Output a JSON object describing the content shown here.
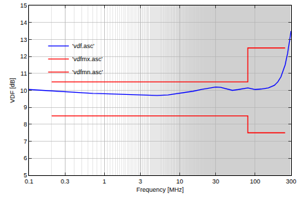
{
  "chart_data": {
    "type": "line",
    "x_label": "Frequency [MHz]",
    "y_label": "VDF [dB]",
    "log": "x",
    "grid": true,
    "legend": "upper left",
    "xlim": [
      0.1,
      300
    ],
    "ylim": [
      5,
      15
    ],
    "xticks": [
      0.1,
      0.3,
      1,
      3,
      10,
      30,
      100,
      300
    ],
    "yticks": [
      5,
      6,
      7,
      8,
      9,
      10,
      11,
      12,
      13,
      14,
      15
    ],
    "series": [
      {
        "name": "'vdf.asc'",
        "color": "#0000ff",
        "line_style": "solid",
        "x": [
          0.1,
          0.15,
          0.2,
          0.3,
          0.5,
          0.7,
          1,
          1.5,
          2,
          3,
          5,
          7,
          10,
          15,
          20,
          25,
          30,
          35,
          40,
          45,
          50,
          60,
          70,
          80,
          90,
          100,
          120,
          150,
          180,
          200,
          220,
          250,
          270,
          285,
          300
        ],
        "values": [
          10.05,
          10.0,
          9.95,
          9.9,
          9.85,
          9.82,
          9.8,
          9.77,
          9.75,
          9.72,
          9.7,
          9.73,
          9.82,
          9.95,
          10.07,
          10.15,
          10.2,
          10.18,
          10.12,
          10.05,
          10.0,
          10.05,
          10.12,
          10.15,
          10.1,
          10.05,
          10.08,
          10.15,
          10.3,
          10.5,
          10.8,
          11.5,
          12.2,
          12.8,
          13.5
        ]
      },
      {
        "name": "'vdfmx.asc'",
        "color": "#ff0000",
        "line_style": "solid",
        "x": [
          0.2,
          80,
          80,
          250
        ],
        "values": [
          10.5,
          10.5,
          12.5,
          12.5
        ]
      },
      {
        "name": "'vdfmn.asc'",
        "color": "#ff0000",
        "line_style": "solid",
        "x": [
          0.2,
          80,
          80,
          250
        ],
        "values": [
          8.5,
          8.5,
          7.5,
          7.5
        ]
      }
    ]
  }
}
